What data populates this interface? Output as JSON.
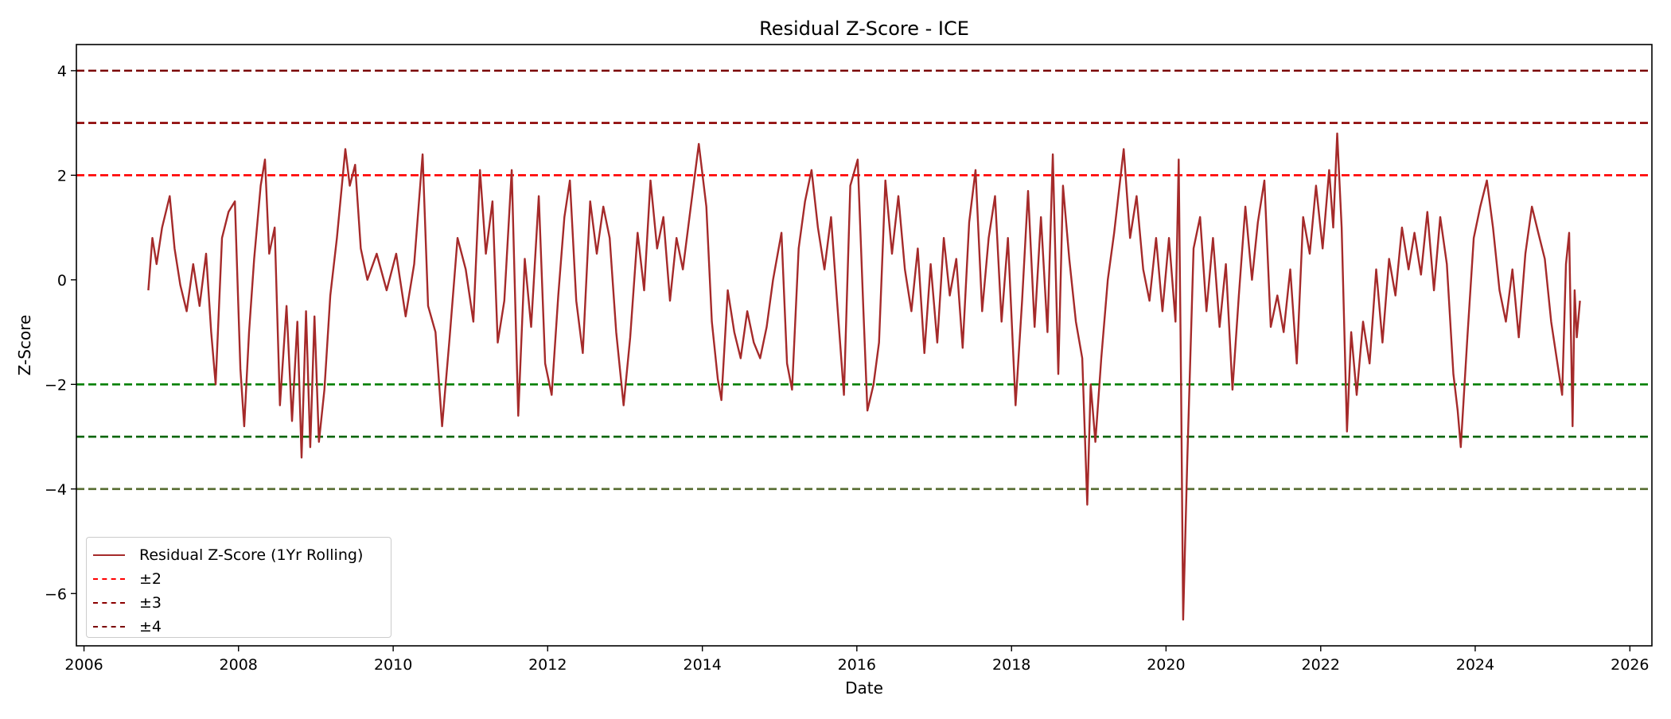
{
  "colors": {
    "series": "#a52a2a",
    "pm2": "#ff0000",
    "pm3": "#8b0000",
    "pm4": "#7a0000",
    "neg2": "#008000",
    "neg3": "#006400",
    "neg4": "#556b2f"
  },
  "chart_data": {
    "type": "line",
    "title": "Residual Z-Score - ICE",
    "xlabel": "Date",
    "ylabel": "Z-Score",
    "xlim": [
      "2005-11-26",
      "2026-04-15"
    ],
    "ylim": [
      -7.0,
      4.5
    ],
    "xticks": [
      "2006",
      "2008",
      "2010",
      "2012",
      "2014",
      "2016",
      "2018",
      "2020",
      "2022",
      "2024",
      "2026"
    ],
    "yticks": [
      "-6",
      "-4",
      "-2",
      "0",
      "2",
      "4"
    ],
    "grid": false,
    "legend_position": "lower-left",
    "legend": [
      "Residual Z-Score (1Yr Rolling)",
      "±2",
      "±3",
      "±4"
    ],
    "reference_lines": [
      {
        "y": 2,
        "color": "#ff0000",
        "style": "dashed"
      },
      {
        "y": 3,
        "color": "#8b0000",
        "style": "dashed"
      },
      {
        "y": 4,
        "color": "#7a0000",
        "style": "dashed"
      },
      {
        "y": -2,
        "color": "#008000",
        "style": "dashed"
      },
      {
        "y": -3,
        "color": "#006400",
        "style": "dashed"
      },
      {
        "y": -4,
        "color": "#556b2f",
        "style": "dashed"
      }
    ],
    "series": [
      {
        "name": "Residual Z-Score (1Yr Rolling)",
        "color": "#a52a2a",
        "points": [
          [
            "2006-11-01",
            -0.2
          ],
          [
            "2006-11-20",
            0.8
          ],
          [
            "2006-12-10",
            0.3
          ],
          [
            "2007-01-05",
            1.0
          ],
          [
            "2007-02-10",
            1.6
          ],
          [
            "2007-03-05",
            0.6
          ],
          [
            "2007-04-01",
            -0.1
          ],
          [
            "2007-05-01",
            -0.6
          ],
          [
            "2007-06-01",
            0.3
          ],
          [
            "2007-07-01",
            -0.5
          ],
          [
            "2007-08-01",
            0.5
          ],
          [
            "2007-08-25",
            -1.0
          ],
          [
            "2007-09-15",
            -2.0
          ],
          [
            "2007-10-15",
            0.8
          ],
          [
            "2007-11-15",
            1.3
          ],
          [
            "2007-12-15",
            1.5
          ],
          [
            "2008-01-10",
            -1.7
          ],
          [
            "2008-01-28",
            -2.8
          ],
          [
            "2008-02-20",
            -1.0
          ],
          [
            "2008-03-15",
            0.4
          ],
          [
            "2008-04-15",
            1.8
          ],
          [
            "2008-05-05",
            2.3
          ],
          [
            "2008-05-25",
            0.5
          ],
          [
            "2008-06-20",
            1.0
          ],
          [
            "2008-07-15",
            -2.4
          ],
          [
            "2008-08-15",
            -0.5
          ],
          [
            "2008-09-10",
            -2.7
          ],
          [
            "2008-10-05",
            -0.8
          ],
          [
            "2008-10-25",
            -3.4
          ],
          [
            "2008-11-15",
            -0.6
          ],
          [
            "2008-12-05",
            -3.2
          ],
          [
            "2008-12-25",
            -0.7
          ],
          [
            "2009-01-15",
            -3.1
          ],
          [
            "2009-02-10",
            -2.1
          ],
          [
            "2009-03-10",
            -0.3
          ],
          [
            "2009-04-10",
            0.8
          ],
          [
            "2009-05-20",
            2.5
          ],
          [
            "2009-06-10",
            1.8
          ],
          [
            "2009-07-05",
            2.2
          ],
          [
            "2009-08-01",
            0.6
          ],
          [
            "2009-09-01",
            0.0
          ],
          [
            "2009-10-15",
            0.5
          ],
          [
            "2009-12-01",
            -0.2
          ],
          [
            "2010-01-15",
            0.5
          ],
          [
            "2010-03-01",
            -0.7
          ],
          [
            "2010-04-10",
            0.3
          ],
          [
            "2010-05-20",
            2.4
          ],
          [
            "2010-06-15",
            -0.5
          ],
          [
            "2010-07-20",
            -1.0
          ],
          [
            "2010-08-20",
            -2.8
          ],
          [
            "2010-09-25",
            -1.1
          ],
          [
            "2010-11-01",
            0.8
          ],
          [
            "2010-12-10",
            0.2
          ],
          [
            "2011-01-15",
            -0.8
          ],
          [
            "2011-02-15",
            2.1
          ],
          [
            "2011-03-15",
            0.5
          ],
          [
            "2011-04-15",
            1.5
          ],
          [
            "2011-05-10",
            -1.2
          ],
          [
            "2011-06-10",
            -0.4
          ],
          [
            "2011-07-15",
            2.1
          ],
          [
            "2011-08-15",
            -2.6
          ],
          [
            "2011-09-15",
            0.4
          ],
          [
            "2011-10-15",
            -0.9
          ],
          [
            "2011-11-20",
            1.6
          ],
          [
            "2011-12-20",
            -1.6
          ],
          [
            "2012-01-20",
            -2.2
          ],
          [
            "2012-02-20",
            -0.3
          ],
          [
            "2012-03-20",
            1.2
          ],
          [
            "2012-04-15",
            1.9
          ],
          [
            "2012-05-15",
            -0.4
          ],
          [
            "2012-06-15",
            -1.4
          ],
          [
            "2012-07-20",
            1.5
          ],
          [
            "2012-08-20",
            0.5
          ],
          [
            "2012-09-20",
            1.4
          ],
          [
            "2012-10-20",
            0.8
          ],
          [
            "2012-11-20",
            -1.0
          ],
          [
            "2012-12-25",
            -2.4
          ],
          [
            "2013-01-25",
            -1.1
          ],
          [
            "2013-03-01",
            0.9
          ],
          [
            "2013-04-01",
            -0.2
          ],
          [
            "2013-05-01",
            1.9
          ],
          [
            "2013-06-01",
            0.6
          ],
          [
            "2013-07-01",
            1.2
          ],
          [
            "2013-08-01",
            -0.4
          ],
          [
            "2013-09-01",
            0.8
          ],
          [
            "2013-10-01",
            0.2
          ],
          [
            "2013-11-01",
            1.2
          ],
          [
            "2013-12-15",
            2.6
          ],
          [
            "2014-01-20",
            1.4
          ],
          [
            "2014-02-15",
            -0.8
          ],
          [
            "2014-03-15",
            -1.9
          ],
          [
            "2014-04-01",
            -2.3
          ],
          [
            "2014-05-01",
            -0.2
          ],
          [
            "2014-06-01",
            -1.0
          ],
          [
            "2014-07-01",
            -1.5
          ],
          [
            "2014-08-01",
            -0.6
          ],
          [
            "2014-09-01",
            -1.2
          ],
          [
            "2014-10-01",
            -1.5
          ],
          [
            "2014-11-01",
            -0.9
          ],
          [
            "2014-12-01",
            0.0
          ],
          [
            "2015-01-10",
            0.9
          ],
          [
            "2015-02-05",
            -1.6
          ],
          [
            "2015-03-01",
            -2.1
          ],
          [
            "2015-04-01",
            0.6
          ],
          [
            "2015-05-01",
            1.5
          ],
          [
            "2015-06-01",
            2.1
          ],
          [
            "2015-07-01",
            1.0
          ],
          [
            "2015-08-01",
            0.2
          ],
          [
            "2015-09-01",
            1.2
          ],
          [
            "2015-10-01",
            -0.5
          ],
          [
            "2015-11-01",
            -2.2
          ],
          [
            "2015-12-01",
            1.8
          ],
          [
            "2016-01-05",
            2.3
          ],
          [
            "2016-02-01",
            -0.6
          ],
          [
            "2016-02-20",
            -2.5
          ],
          [
            "2016-03-20",
            -2.0
          ],
          [
            "2016-04-15",
            -1.2
          ],
          [
            "2016-05-15",
            1.9
          ],
          [
            "2016-06-15",
            0.5
          ],
          [
            "2016-07-15",
            1.6
          ],
          [
            "2016-08-15",
            0.2
          ],
          [
            "2016-09-15",
            -0.6
          ],
          [
            "2016-10-15",
            0.6
          ],
          [
            "2016-11-15",
            -1.4
          ],
          [
            "2016-12-15",
            0.3
          ],
          [
            "2017-01-15",
            -1.2
          ],
          [
            "2017-02-15",
            0.8
          ],
          [
            "2017-03-15",
            -0.3
          ],
          [
            "2017-04-15",
            0.4
          ],
          [
            "2017-05-15",
            -1.3
          ],
          [
            "2017-06-15",
            1.1
          ],
          [
            "2017-07-15",
            2.1
          ],
          [
            "2017-08-15",
            -0.6
          ],
          [
            "2017-09-15",
            0.8
          ],
          [
            "2017-10-15",
            1.6
          ],
          [
            "2017-11-15",
            -0.8
          ],
          [
            "2017-12-15",
            0.8
          ],
          [
            "2018-01-20",
            -2.4
          ],
          [
            "2018-02-20",
            -0.4
          ],
          [
            "2018-03-20",
            1.7
          ],
          [
            "2018-04-20",
            -0.9
          ],
          [
            "2018-05-20",
            1.2
          ],
          [
            "2018-06-20",
            -1.0
          ],
          [
            "2018-07-15",
            2.4
          ],
          [
            "2018-08-10",
            -1.8
          ],
          [
            "2018-09-01",
            1.8
          ],
          [
            "2018-10-01",
            0.4
          ],
          [
            "2018-11-01",
            -0.8
          ],
          [
            "2018-12-01",
            -1.5
          ],
          [
            "2018-12-25",
            -4.3
          ],
          [
            "2019-01-10",
            -2.0
          ],
          [
            "2019-02-01",
            -3.1
          ],
          [
            "2019-03-01",
            -1.5
          ],
          [
            "2019-04-01",
            0.0
          ],
          [
            "2019-05-01",
            0.9
          ],
          [
            "2019-06-15",
            2.5
          ],
          [
            "2019-07-15",
            0.8
          ],
          [
            "2019-08-15",
            1.6
          ],
          [
            "2019-09-15",
            0.2
          ],
          [
            "2019-10-15",
            -0.4
          ],
          [
            "2019-11-15",
            0.8
          ],
          [
            "2019-12-15",
            -0.6
          ],
          [
            "2020-01-15",
            0.8
          ],
          [
            "2020-02-15",
            -0.8
          ],
          [
            "2020-03-01",
            2.3
          ],
          [
            "2020-03-12",
            -2.0
          ],
          [
            "2020-03-22",
            -6.5
          ],
          [
            "2020-04-10",
            -3.5
          ],
          [
            "2020-05-10",
            0.6
          ],
          [
            "2020-06-10",
            1.2
          ],
          [
            "2020-07-10",
            -0.6
          ],
          [
            "2020-08-10",
            0.8
          ],
          [
            "2020-09-10",
            -0.9
          ],
          [
            "2020-10-10",
            0.3
          ],
          [
            "2020-11-10",
            -2.1
          ],
          [
            "2020-12-10",
            -0.3
          ],
          [
            "2021-01-10",
            1.4
          ],
          [
            "2021-02-10",
            0.0
          ],
          [
            "2021-03-10",
            1.1
          ],
          [
            "2021-04-10",
            1.9
          ],
          [
            "2021-05-10",
            -0.9
          ],
          [
            "2021-06-10",
            -0.3
          ],
          [
            "2021-07-10",
            -1.0
          ],
          [
            "2021-08-10",
            0.2
          ],
          [
            "2021-09-10",
            -1.6
          ],
          [
            "2021-10-10",
            1.2
          ],
          [
            "2021-11-10",
            0.5
          ],
          [
            "2021-12-10",
            1.8
          ],
          [
            "2022-01-10",
            0.6
          ],
          [
            "2022-02-10",
            2.1
          ],
          [
            "2022-03-01",
            1.0
          ],
          [
            "2022-03-20",
            2.8
          ],
          [
            "2022-04-10",
            1.0
          ],
          [
            "2022-05-05",
            -2.9
          ],
          [
            "2022-05-25",
            -1.0
          ],
          [
            "2022-06-20",
            -2.2
          ],
          [
            "2022-07-20",
            -0.8
          ],
          [
            "2022-08-20",
            -1.6
          ],
          [
            "2022-09-20",
            0.2
          ],
          [
            "2022-10-20",
            -1.2
          ],
          [
            "2022-11-20",
            0.4
          ],
          [
            "2022-12-20",
            -0.3
          ],
          [
            "2023-01-20",
            1.0
          ],
          [
            "2023-02-20",
            0.2
          ],
          [
            "2023-03-20",
            0.9
          ],
          [
            "2023-04-20",
            0.1
          ],
          [
            "2023-05-20",
            1.3
          ],
          [
            "2023-06-20",
            -0.2
          ],
          [
            "2023-07-20",
            1.2
          ],
          [
            "2023-08-20",
            0.3
          ],
          [
            "2023-09-20",
            -1.8
          ],
          [
            "2023-10-10",
            -2.5
          ],
          [
            "2023-10-25",
            -3.2
          ],
          [
            "2023-11-25",
            -1.1
          ],
          [
            "2023-12-25",
            0.8
          ],
          [
            "2024-01-25",
            1.4
          ],
          [
            "2024-02-25",
            1.9
          ],
          [
            "2024-03-25",
            1.0
          ],
          [
            "2024-04-25",
            -0.2
          ],
          [
            "2024-05-25",
            -0.8
          ],
          [
            "2024-06-25",
            0.2
          ],
          [
            "2024-07-25",
            -1.1
          ],
          [
            "2024-08-25",
            0.5
          ],
          [
            "2024-09-25",
            1.4
          ],
          [
            "2024-10-25",
            0.9
          ],
          [
            "2024-11-25",
            0.4
          ],
          [
            "2024-12-25",
            -0.8
          ],
          [
            "2025-01-20",
            -1.5
          ],
          [
            "2025-02-15",
            -2.2
          ],
          [
            "2025-03-05",
            0.3
          ],
          [
            "2025-03-20",
            0.9
          ],
          [
            "2025-04-05",
            -2.8
          ],
          [
            "2025-04-15",
            -0.2
          ],
          [
            "2025-04-25",
            -1.1
          ],
          [
            "2025-05-10",
            -0.4
          ]
        ]
      }
    ]
  }
}
